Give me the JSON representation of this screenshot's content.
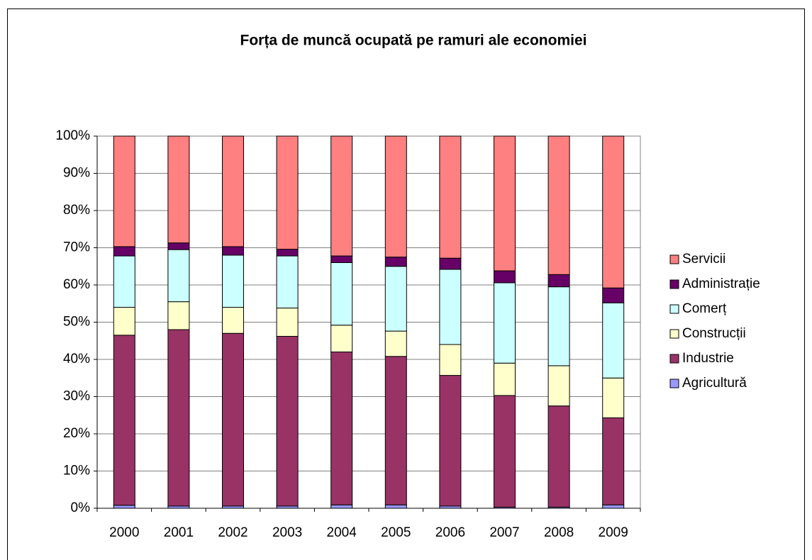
{
  "chart_data": {
    "type": "stacked_bar_100",
    "title": "Forța de muncă ocupată pe ramuri ale economiei",
    "categories": [
      "2000",
      "2001",
      "2002",
      "2003",
      "2004",
      "2005",
      "2006",
      "2007",
      "2008",
      "2009"
    ],
    "series": [
      {
        "name": "Agricultură",
        "color": "#9999ff",
        "values": [
          0.8,
          0.6,
          0.6,
          0.6,
          0.9,
          0.9,
          0.6,
          0.3,
          0.3,
          0.9
        ]
      },
      {
        "name": "Industrie",
        "color": "#993366",
        "values": [
          45.7,
          47.4,
          46.4,
          45.6,
          41.1,
          39.9,
          35.1,
          30,
          27.2,
          23.4
        ]
      },
      {
        "name": "Construcții",
        "color": "#ffffcc",
        "values": [
          7.5,
          7.5,
          7,
          7.6,
          7.2,
          6.8,
          8.3,
          8.7,
          10.8,
          10.7
        ]
      },
      {
        "name": "Comerț",
        "color": "#ccffff",
        "values": [
          13.8,
          14,
          14,
          14,
          16.8,
          17.4,
          20.2,
          21.6,
          21.2,
          20.2
        ]
      },
      {
        "name": "Administrație",
        "color": "#660066",
        "values": [
          2.5,
          1.8,
          2.3,
          1.8,
          1.8,
          2.5,
          3,
          3.2,
          3.3,
          4
        ]
      },
      {
        "name": "Servicii",
        "color": "#ff8080",
        "values": [
          29.7,
          28.7,
          29.7,
          30.4,
          32.2,
          32.5,
          32.8,
          36.2,
          37.2,
          40.8
        ]
      }
    ],
    "ylim": [
      0,
      100
    ],
    "yticks": [
      {
        "value": 0,
        "label": "0%"
      },
      {
        "value": 10,
        "label": "10%"
      },
      {
        "value": 20,
        "label": "20%"
      },
      {
        "value": 30,
        "label": "30%"
      },
      {
        "value": 40,
        "label": "40%"
      },
      {
        "value": 50,
        "label": "50%"
      },
      {
        "value": 60,
        "label": "60%"
      },
      {
        "value": 70,
        "label": "70%"
      },
      {
        "value": 80,
        "label": "80%"
      },
      {
        "value": 90,
        "label": "90%"
      },
      {
        "value": 100,
        "label": "100%"
      }
    ],
    "grid": true,
    "legend": "right"
  }
}
